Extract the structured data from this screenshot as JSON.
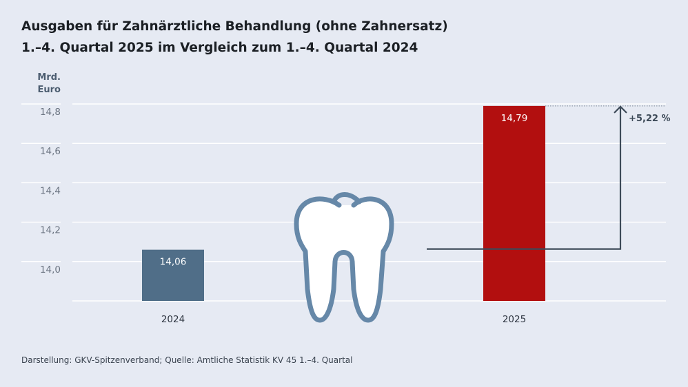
{
  "title_line1": "Ausgaben für Zahnärztliche Behandlung (ohne Zahnersatz)",
  "title_line2": "1.–4. Quartal 2025 im Vergleich zum 1.–4. Quartal 2024",
  "source": "Darstellung: GKV-Spitzenverband; Quelle: Amtliche Statistik KV 45 1.–4. Quartal",
  "icon": "tooth-icon",
  "colors": {
    "background": "#e6eaf3",
    "bar_2024": "#506e88",
    "bar_2025": "#b20f0f",
    "arrow": "#3d4a58",
    "tooth": "#6688a8"
  },
  "chart_data": {
    "type": "bar",
    "ylabel": "Mrd. Euro",
    "ylabel_lines": [
      "Mrd.",
      "Euro"
    ],
    "ylim": [
      13.8,
      14.8
    ],
    "yticks": [
      14.0,
      14.2,
      14.4,
      14.6,
      14.8
    ],
    "ytick_labels": [
      "14,0",
      "14,2",
      "14,4",
      "14,6",
      "14,8"
    ],
    "grid": true,
    "categories": [
      "2024",
      "2025"
    ],
    "values": [
      14.06,
      14.79
    ],
    "value_labels": [
      "14,06",
      "14,79"
    ],
    "annotation": "+5,22 %"
  }
}
